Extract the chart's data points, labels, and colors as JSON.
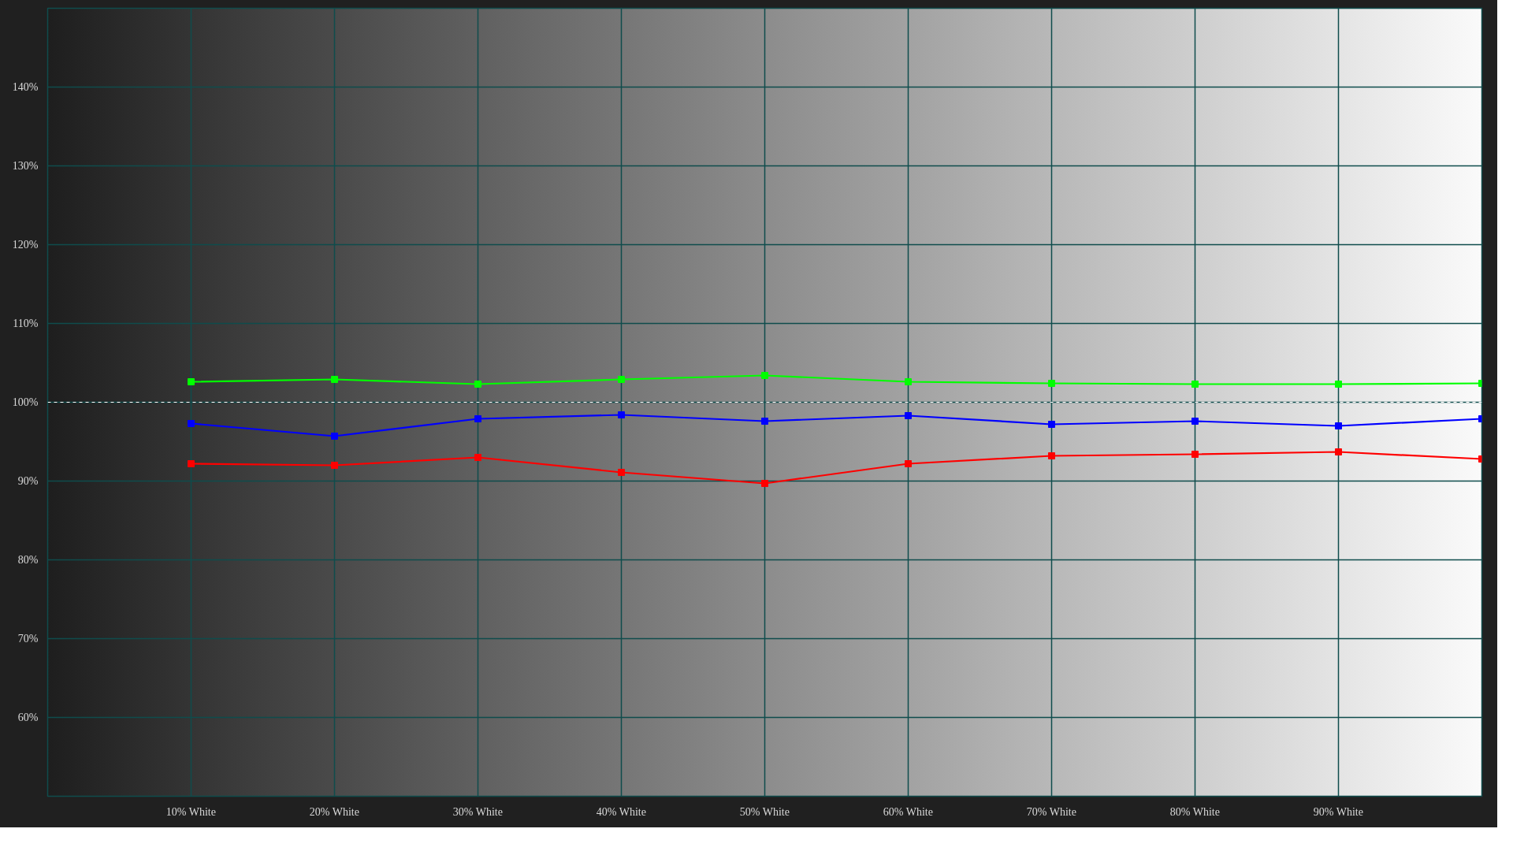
{
  "chart_data": {
    "type": "line",
    "x": [
      10,
      20,
      30,
      40,
      50,
      60,
      70,
      80,
      90,
      100
    ],
    "xlim": [
      0,
      100
    ],
    "xticks": [
      {
        "value": 10,
        "label": "10% White"
      },
      {
        "value": 20,
        "label": "20% White"
      },
      {
        "value": 30,
        "label": "30% White"
      },
      {
        "value": 40,
        "label": "40% White"
      },
      {
        "value": 50,
        "label": "50% White"
      },
      {
        "value": 60,
        "label": "60% White"
      },
      {
        "value": 70,
        "label": "70% White"
      },
      {
        "value": 80,
        "label": "80% White"
      },
      {
        "value": 90,
        "label": "90% White"
      }
    ],
    "ylim": [
      50,
      150
    ],
    "yticks": [
      {
        "value": 60,
        "label": "60%"
      },
      {
        "value": 70,
        "label": "70%"
      },
      {
        "value": 80,
        "label": "80%"
      },
      {
        "value": 90,
        "label": "90%"
      },
      {
        "value": 100,
        "label": "100%"
      },
      {
        "value": 110,
        "label": "110%"
      },
      {
        "value": 120,
        "label": "120%"
      },
      {
        "value": 130,
        "label": "130%"
      },
      {
        "value": 140,
        "label": "140%"
      }
    ],
    "grid": true,
    "marker": "square",
    "line_style": "solid",
    "ref_lines": [
      {
        "axis": "y",
        "value": 100,
        "color": "#ffffff",
        "line_style": "dashed"
      }
    ],
    "series": [
      {
        "color": "#ff0000",
        "values": [
          92.2,
          92.0,
          93.0,
          91.1,
          89.7,
          92.2,
          93.2,
          93.4,
          93.7,
          92.8
        ]
      },
      {
        "color": "#00ff00",
        "values": [
          102.6,
          102.9,
          102.3,
          102.9,
          103.4,
          102.6,
          102.4,
          102.3,
          102.3,
          102.4
        ]
      },
      {
        "color": "#0000ff",
        "values": [
          97.3,
          95.7,
          97.9,
          98.4,
          97.6,
          98.3,
          97.2,
          97.6,
          97.0,
          97.9
        ]
      }
    ]
  }
}
